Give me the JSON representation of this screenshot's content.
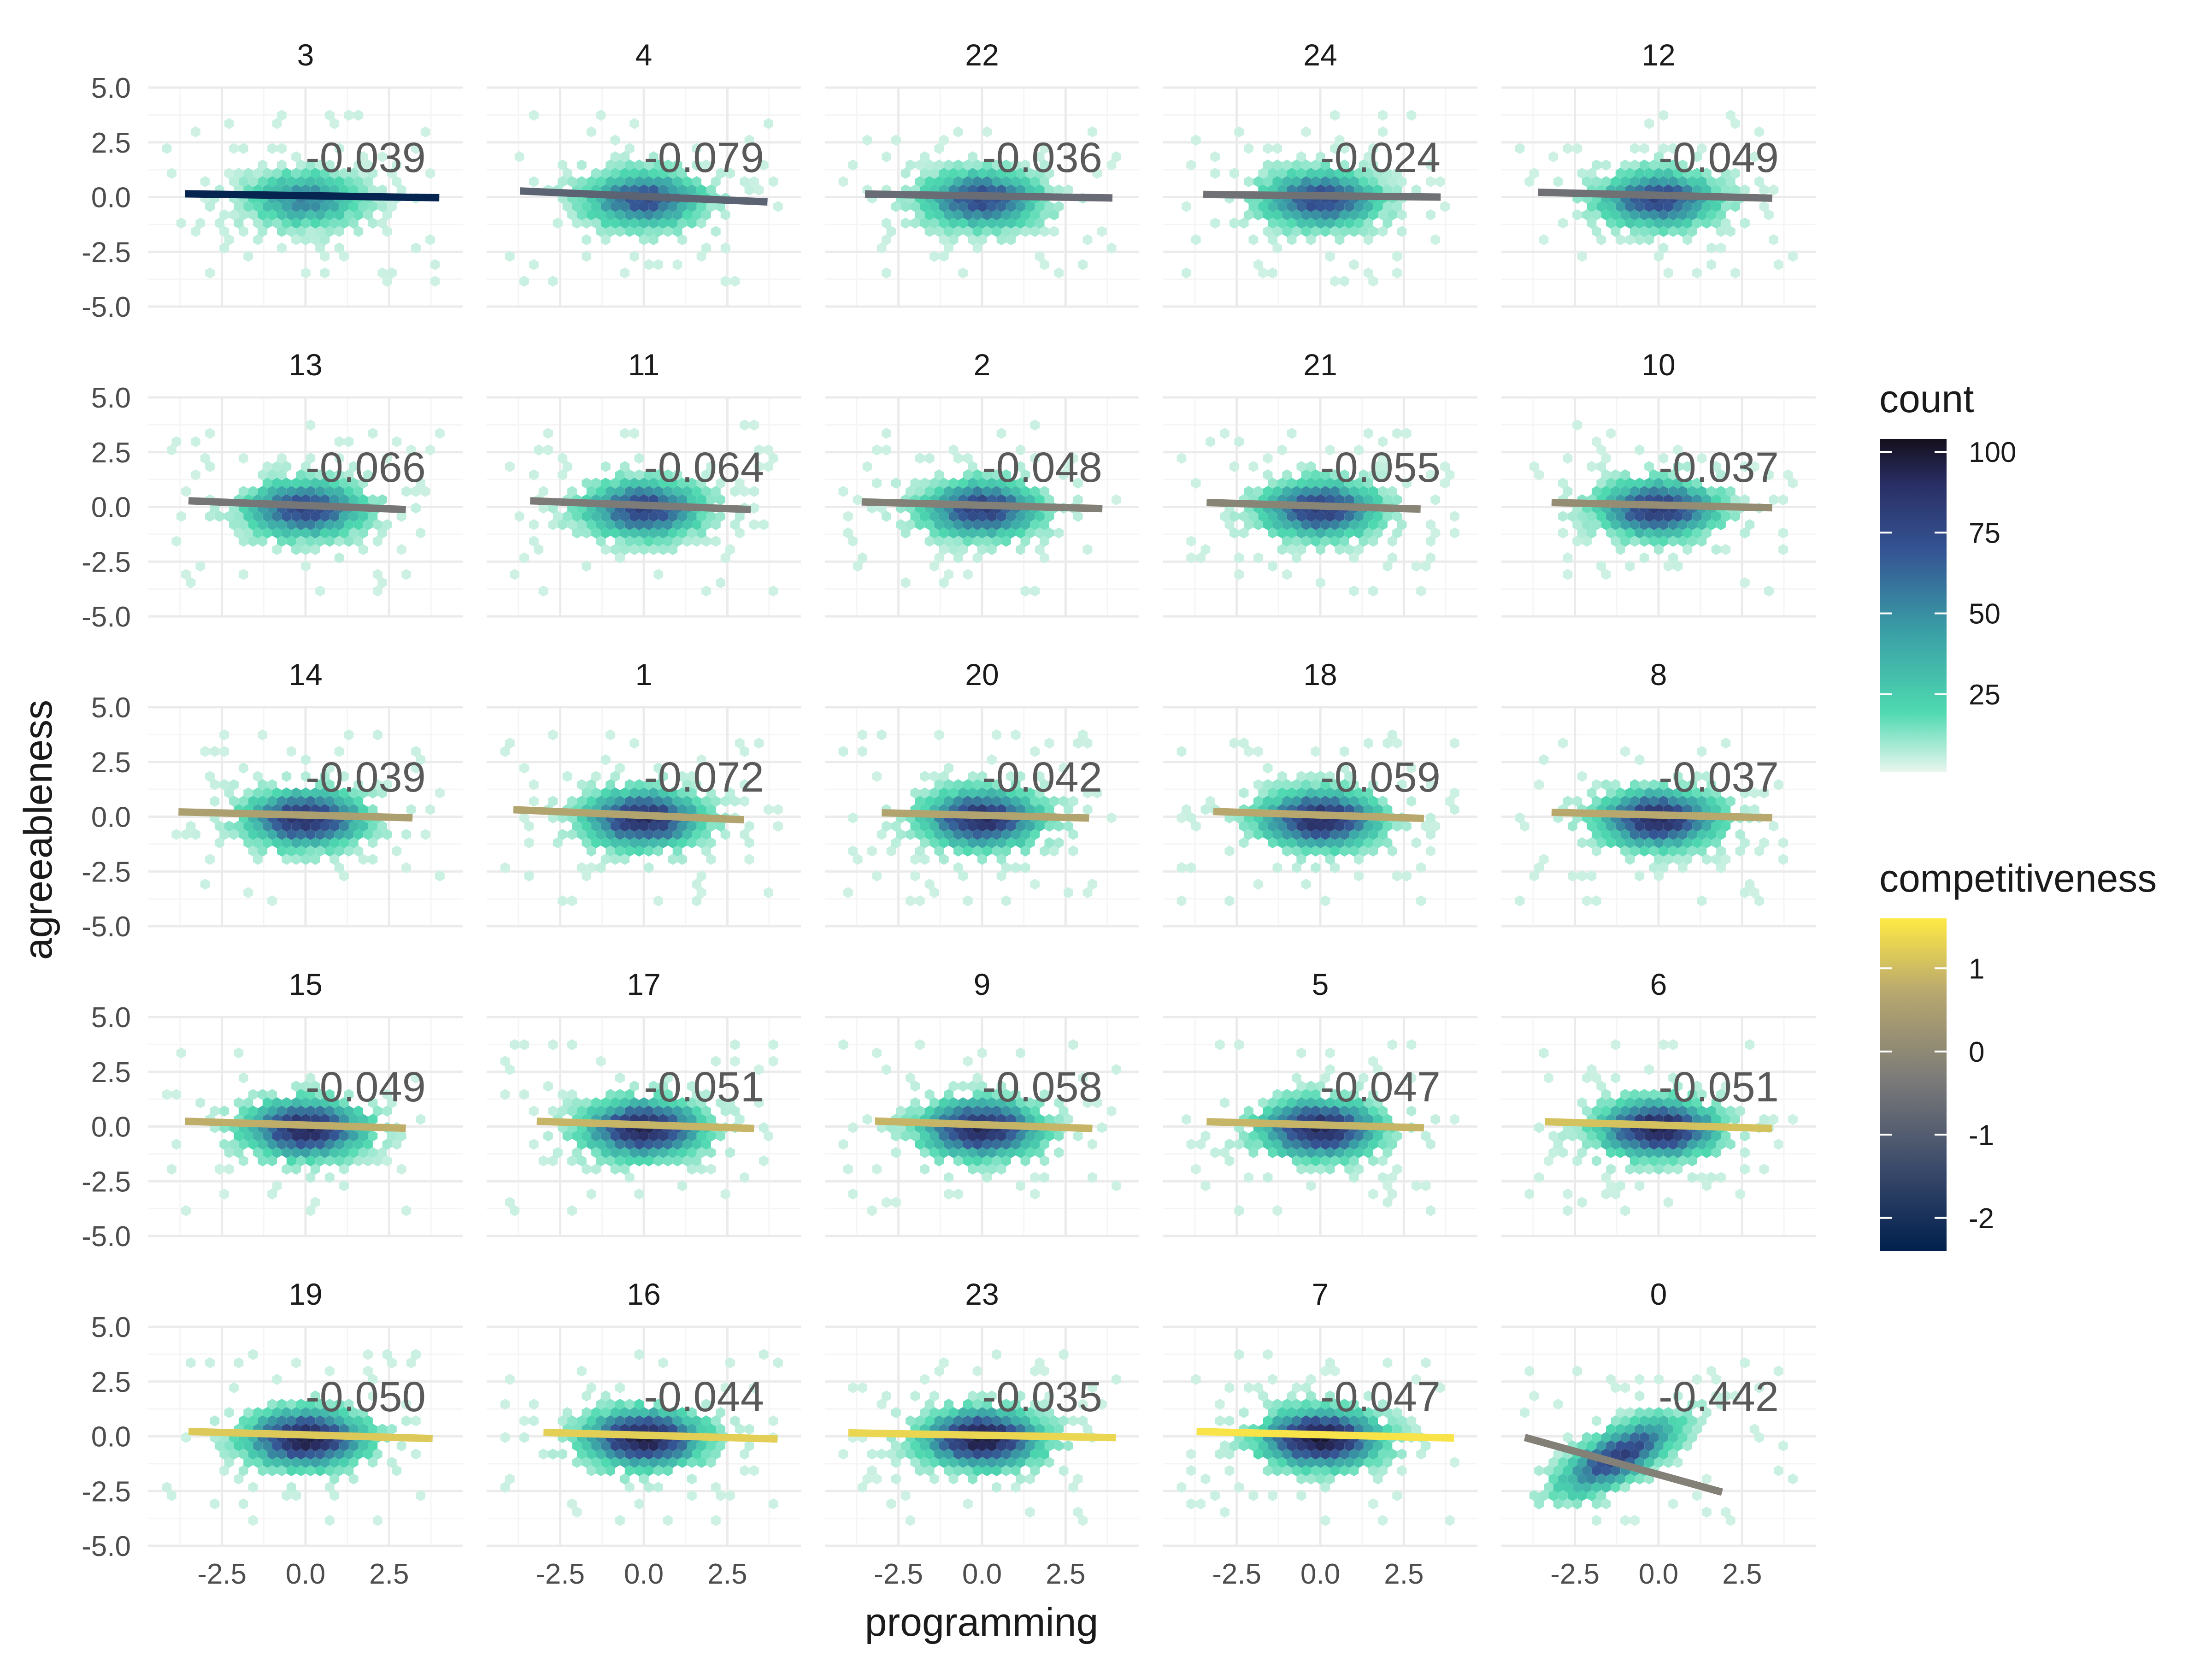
{
  "chart_data": {
    "type": "scatter",
    "subtype": "faceted hexbin density with linear fit lines",
    "xlabel": "programming",
    "ylabel": "agreeableness",
    "x_ticks": [
      "-2.5",
      "0.0",
      "2.5"
    ],
    "y_ticks": [
      "5.0",
      "2.5",
      "0.0",
      "-2.5",
      "-5.0"
    ],
    "xlim": [
      -4.7,
      4.7
    ],
    "ylim": [
      -5.0,
      5.0
    ],
    "grid": true,
    "colors": {
      "background": "#ffffff",
      "grid_major": "#ebebeb",
      "grid_minor": "#f5f5f5",
      "text": "#1a1a1a",
      "tick_text": "#4d4d4d",
      "annotation_text": "#595959"
    },
    "legends": {
      "count": {
        "title": "count",
        "ticks": [
          "100",
          "75",
          "50",
          "25"
        ],
        "tick_values": [
          100,
          75,
          50,
          25
        ],
        "range": [
          1,
          104
        ],
        "colors": [
          "#e8f6ee",
          "#4ed9b0",
          "#3a9fa6",
          "#355594",
          "#2a2f66",
          "#140f1c"
        ]
      },
      "competitiveness": {
        "title": "competitiveness",
        "ticks": [
          "1",
          "0",
          "-1",
          "-2"
        ],
        "tick_values": [
          1,
          0,
          -1,
          -2
        ],
        "range": [
          -2.4,
          1.6
        ],
        "colors": [
          "#00204d",
          "#3b4a6b",
          "#7c7b78",
          "#b8a86e",
          "#ffe945"
        ]
      }
    },
    "panels": [
      {
        "label": "3",
        "r": "-0.039",
        "fit_x": [
          -3.6,
          4.0
        ],
        "fit_y": [
          0.15,
          -0.03
        ],
        "competitiveness": -2.3
      },
      {
        "label": "4",
        "r": "-0.079",
        "fit_x": [
          -3.7,
          3.7
        ],
        "fit_y": [
          0.28,
          -0.22
        ],
        "competitiveness": -0.9
      },
      {
        "label": "22",
        "r": "-0.036",
        "fit_x": [
          -3.5,
          3.9
        ],
        "fit_y": [
          0.14,
          -0.04
        ],
        "competitiveness": -0.7
      },
      {
        "label": "24",
        "r": "-0.024",
        "fit_x": [
          -3.5,
          3.6
        ],
        "fit_y": [
          0.12,
          0.0
        ],
        "competitiveness": -0.6
      },
      {
        "label": "12",
        "r": "-0.049",
        "fit_x": [
          -3.6,
          3.4
        ],
        "fit_y": [
          0.22,
          -0.05
        ],
        "competitiveness": -0.6
      },
      {
        "label": "13",
        "r": "-0.066",
        "fit_x": [
          -3.5,
          3.0
        ],
        "fit_y": [
          0.28,
          -0.12
        ],
        "competitiveness": -0.5
      },
      {
        "label": "11",
        "r": "-0.064",
        "fit_x": [
          -3.4,
          3.2
        ],
        "fit_y": [
          0.28,
          -0.12
        ],
        "competitiveness": -0.4
      },
      {
        "label": "2",
        "r": "-0.048",
        "fit_x": [
          -3.6,
          3.6
        ],
        "fit_y": [
          0.23,
          -0.08
        ],
        "competitiveness": -0.3
      },
      {
        "label": "21",
        "r": "-0.055",
        "fit_x": [
          -3.4,
          3.0
        ],
        "fit_y": [
          0.2,
          -0.1
        ],
        "competitiveness": -0.2
      },
      {
        "label": "10",
        "r": "-0.037",
        "fit_x": [
          -3.2,
          3.4
        ],
        "fit_y": [
          0.2,
          -0.04
        ],
        "competitiveness": 0.0
      },
      {
        "label": "14",
        "r": "-0.039",
        "fit_x": [
          -3.8,
          3.2
        ],
        "fit_y": [
          0.22,
          -0.05
        ],
        "competitiveness": 0.4
      },
      {
        "label": "1",
        "r": "-0.072",
        "fit_x": [
          -3.9,
          3.0
        ],
        "fit_y": [
          0.32,
          -0.14
        ],
        "competitiveness": 0.5
      },
      {
        "label": "20",
        "r": "-0.042",
        "fit_x": [
          -3.0,
          3.2
        ],
        "fit_y": [
          0.18,
          -0.06
        ],
        "competitiveness": 0.5
      },
      {
        "label": "18",
        "r": "-0.059",
        "fit_x": [
          -3.2,
          3.1
        ],
        "fit_y": [
          0.24,
          -0.08
        ],
        "competitiveness": 0.6
      },
      {
        "label": "8",
        "r": "-0.037",
        "fit_x": [
          -3.2,
          3.4
        ],
        "fit_y": [
          0.2,
          -0.05
        ],
        "competitiveness": 0.6
      },
      {
        "label": "15",
        "r": "-0.049",
        "fit_x": [
          -3.6,
          3.0
        ],
        "fit_y": [
          0.24,
          -0.08
        ],
        "competitiveness": 0.7
      },
      {
        "label": "17",
        "r": "-0.051",
        "fit_x": [
          -3.2,
          3.3
        ],
        "fit_y": [
          0.24,
          -0.09
        ],
        "competitiveness": 0.8
      },
      {
        "label": "9",
        "r": "-0.058",
        "fit_x": [
          -3.2,
          3.3
        ],
        "fit_y": [
          0.25,
          -0.09
        ],
        "competitiveness": 0.8
      },
      {
        "label": "5",
        "r": "-0.047",
        "fit_x": [
          -3.4,
          3.1
        ],
        "fit_y": [
          0.22,
          -0.06
        ],
        "competitiveness": 0.8
      },
      {
        "label": "6",
        "r": "-0.051",
        "fit_x": [
          -3.4,
          3.4
        ],
        "fit_y": [
          0.22,
          -0.09
        ],
        "competitiveness": 1.0
      },
      {
        "label": "19",
        "r": "-0.050",
        "fit_x": [
          -3.5,
          3.8
        ],
        "fit_y": [
          0.22,
          -0.1
        ],
        "competitiveness": 1.1
      },
      {
        "label": "16",
        "r": "-0.044",
        "fit_x": [
          -3.0,
          4.0
        ],
        "fit_y": [
          0.18,
          -0.12
        ],
        "competitiveness": 1.2
      },
      {
        "label": "23",
        "r": "-0.035",
        "fit_x": [
          -4.0,
          4.0
        ],
        "fit_y": [
          0.16,
          -0.06
        ],
        "competitiveness": 1.3
      },
      {
        "label": "7",
        "r": "-0.047",
        "fit_x": [
          -3.7,
          4.0
        ],
        "fit_y": [
          0.22,
          -0.08
        ],
        "competitiveness": 1.5
      },
      {
        "label": "0",
        "r": "-0.442",
        "fit_x": [
          -4.0,
          1.9
        ],
        "fit_y": [
          -0.05,
          -2.55
        ],
        "competitiveness": -0.3
      }
    ]
  }
}
